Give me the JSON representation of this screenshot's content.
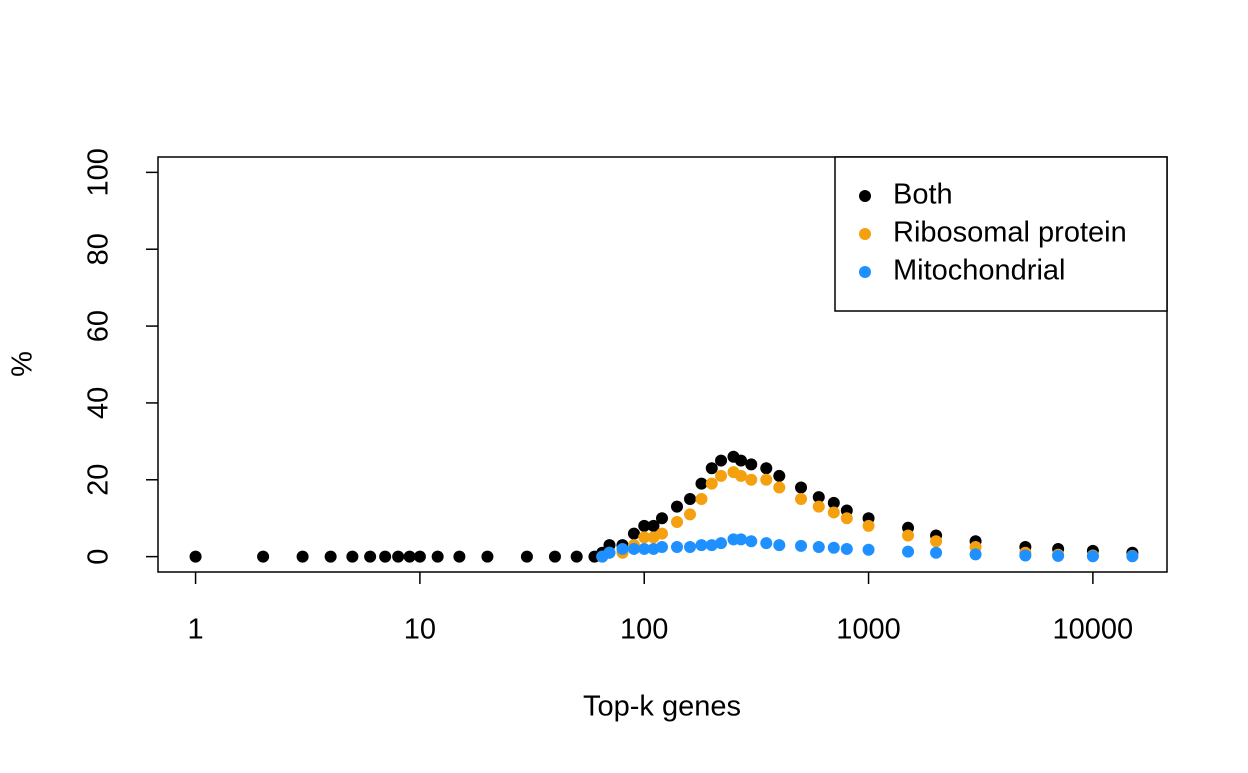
{
  "chart_data": {
    "type": "scatter",
    "x_label": "Top-k genes",
    "y_label": "%",
    "x_log": true,
    "xlim": [
      0.68,
      21400
    ],
    "ylim": [
      -4,
      104
    ],
    "xticks": [
      1,
      10,
      100,
      1000,
      10000
    ],
    "yticks": [
      0,
      20,
      40,
      60,
      80,
      100
    ],
    "legend_position": "topright",
    "x": [
      1,
      2,
      3,
      4,
      5,
      6,
      7,
      8,
      9,
      10,
      12,
      15,
      20,
      30,
      40,
      50,
      60,
      65,
      70,
      80,
      90,
      100,
      110,
      120,
      140,
      160,
      180,
      200,
      220,
      250,
      270,
      300,
      350,
      400,
      500,
      600,
      700,
      800,
      1000,
      1500,
      2000,
      3000,
      5000,
      7000,
      10000,
      15000
    ],
    "series": [
      {
        "name": "Both",
        "color": "#000000",
        "values": [
          0,
          0,
          0,
          0,
          0,
          0,
          0,
          0,
          0,
          0,
          0,
          0,
          0,
          0,
          0,
          0,
          0,
          1,
          3,
          3,
          6,
          8,
          8,
          10,
          13,
          15,
          19,
          23,
          25,
          26,
          25,
          24,
          23,
          21,
          18,
          15.5,
          14,
          12,
          10,
          7.5,
          5.5,
          4,
          2.5,
          2,
          1.5,
          1
        ]
      },
      {
        "name": "Ribosomal protein",
        "color": "#f5a00f",
        "values": [
          null,
          null,
          null,
          null,
          null,
          null,
          null,
          null,
          null,
          null,
          null,
          null,
          null,
          null,
          null,
          null,
          null,
          0,
          1,
          1,
          3,
          5,
          5,
          6,
          9,
          11,
          15,
          19,
          21,
          22,
          21,
          20,
          20,
          18,
          15,
          13,
          11.5,
          10,
          8,
          5.5,
          4,
          2.5,
          1,
          0.5,
          0.3,
          0.2
        ]
      },
      {
        "name": "Mitochondrial",
        "color": "#1e90ff",
        "values": [
          null,
          null,
          null,
          null,
          null,
          null,
          null,
          null,
          null,
          null,
          null,
          null,
          null,
          null,
          null,
          null,
          null,
          0,
          1,
          2,
          2,
          2,
          2,
          2.5,
          2.5,
          2.5,
          3,
          3,
          3.5,
          4.5,
          4.5,
          4,
          3.5,
          3,
          2.8,
          2.5,
          2.3,
          2,
          1.8,
          1.3,
          1,
          0.6,
          0.3,
          0.2,
          0.1,
          0.1
        ]
      }
    ]
  }
}
